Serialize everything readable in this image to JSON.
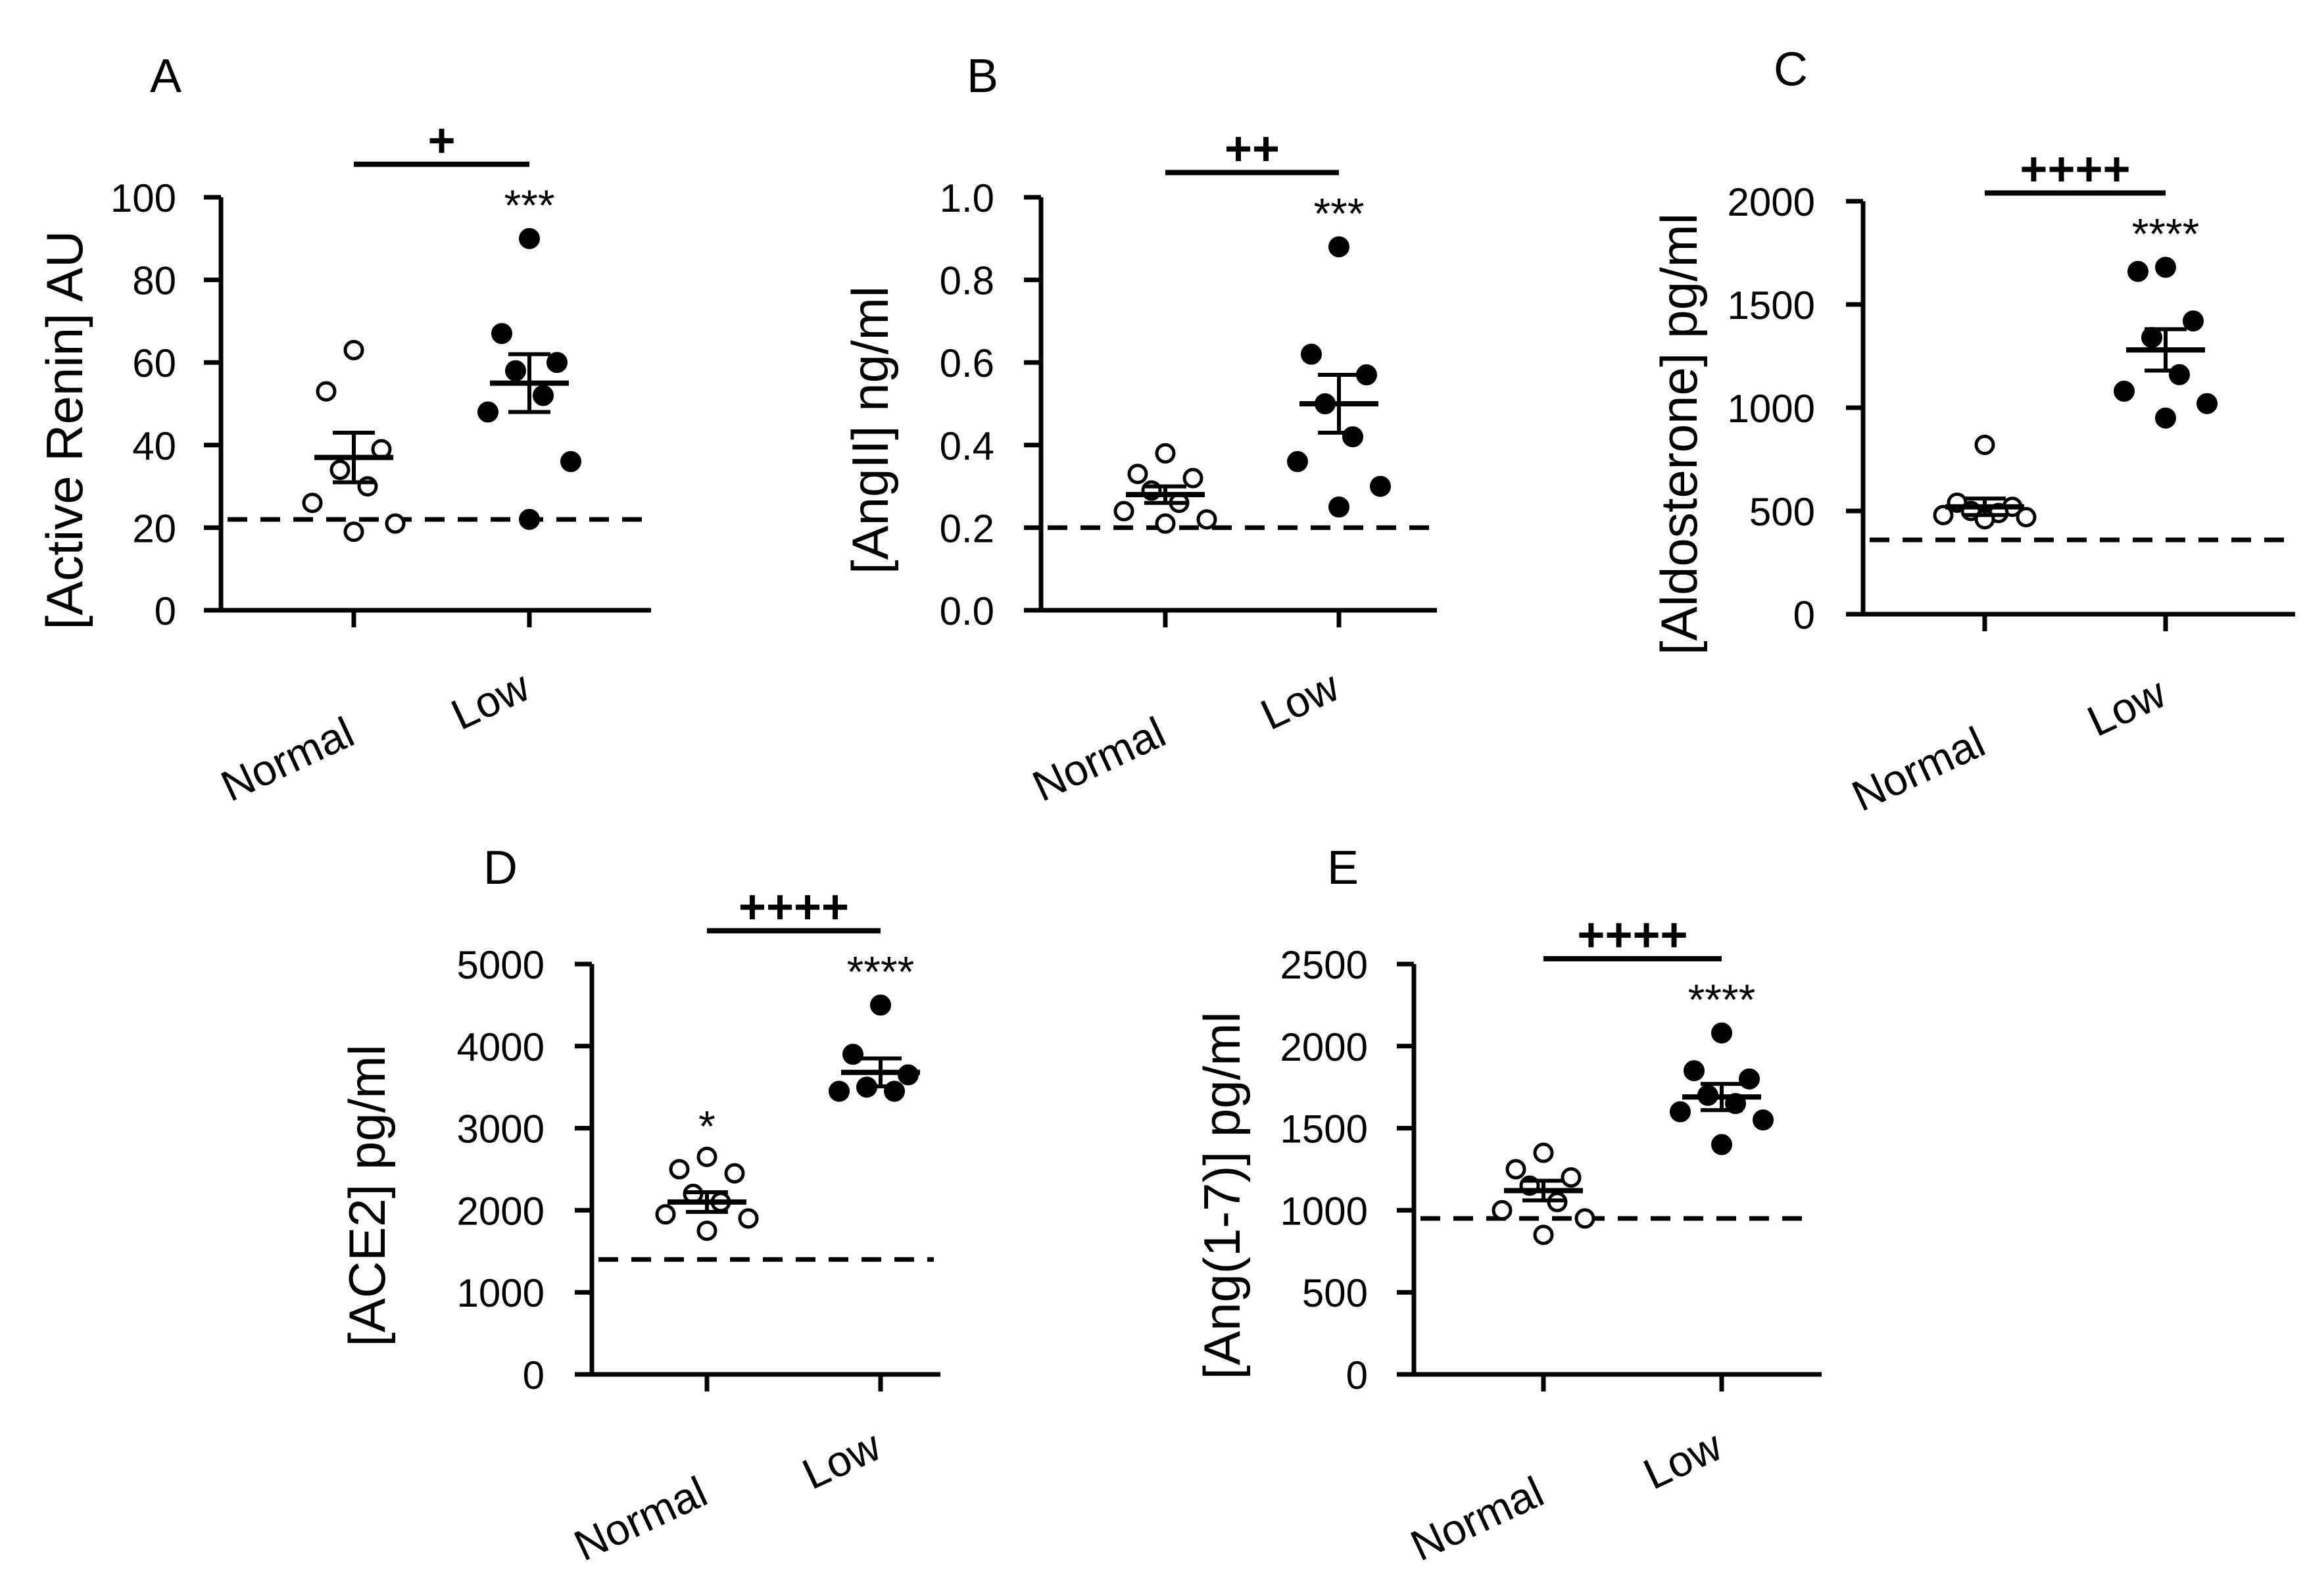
{
  "figure": {
    "background": "#ffffff",
    "ink": "#000000"
  },
  "chart_data": [
    {
      "panel_label": "A",
      "type": "scatter",
      "ylabel": "[Active Renin] AU",
      "categories": [
        "Normal",
        "Low"
      ],
      "ylim": [
        0,
        100
      ],
      "yticks": [
        0,
        20,
        40,
        60,
        80,
        100
      ],
      "baseline": 22,
      "series": [
        {
          "name": "Normal",
          "marker": "open",
          "values": [
            63,
            53,
            39,
            34,
            30,
            26,
            21,
            19
          ],
          "mean": 37,
          "sem": 6
        },
        {
          "name": "Low",
          "marker": "filled",
          "values": [
            90,
            67,
            60,
            58,
            52,
            48,
            36,
            22
          ],
          "mean": 55,
          "sem": 7
        }
      ],
      "significance_bar": "+",
      "significance_star": {
        "group": "Low",
        "text": "***"
      }
    },
    {
      "panel_label": "B",
      "type": "scatter",
      "ylabel": "[AngII] ng/ml",
      "categories": [
        "Normal",
        "Low"
      ],
      "ylim": [
        0,
        1.0
      ],
      "yticks": [
        0.0,
        0.2,
        0.4,
        0.6,
        0.8,
        1.0
      ],
      "baseline": 0.2,
      "series": [
        {
          "name": "Normal",
          "marker": "open",
          "values": [
            0.38,
            0.33,
            0.32,
            0.29,
            0.26,
            0.24,
            0.22,
            0.21
          ],
          "mean": 0.28,
          "sem": 0.02
        },
        {
          "name": "Low",
          "marker": "filled",
          "values": [
            0.88,
            0.62,
            0.57,
            0.5,
            0.42,
            0.36,
            0.3,
            0.25
          ],
          "mean": 0.5,
          "sem": 0.07
        }
      ],
      "significance_bar": "++",
      "significance_star": {
        "group": "Low",
        "text": "***"
      }
    },
    {
      "panel_label": "C",
      "type": "scatter",
      "ylabel": "[Aldosterone] pg/ml",
      "categories": [
        "Normal",
        "Low"
      ],
      "ylim": [
        0,
        2000
      ],
      "yticks": [
        0,
        500,
        1000,
        1500,
        2000
      ],
      "baseline": 360,
      "series": [
        {
          "name": "Normal",
          "marker": "open",
          "values": [
            820,
            540,
            520,
            500,
            490,
            480,
            470,
            460
          ],
          "mean": 520,
          "sem": 40
        },
        {
          "name": "Low",
          "marker": "filled",
          "values": [
            1680,
            1660,
            1420,
            1340,
            1160,
            1080,
            1020,
            950
          ],
          "mean": 1280,
          "sem": 100
        }
      ],
      "significance_bar": "++++",
      "significance_star": {
        "group": "Low",
        "text": "****"
      }
    },
    {
      "panel_label": "D",
      "type": "scatter",
      "ylabel": "[ACE2] pg/ml",
      "categories": [
        "Normal",
        "Low"
      ],
      "ylim": [
        0,
        5000
      ],
      "yticks": [
        0,
        1000,
        2000,
        3000,
        4000,
        5000
      ],
      "baseline": 1400,
      "series": [
        {
          "name": "Normal",
          "marker": "open",
          "values": [
            2650,
            2500,
            2450,
            2200,
            2100,
            1950,
            1900,
            1750
          ],
          "mean": 2100,
          "sem": 120
        },
        {
          "name": "Low",
          "marker": "filled",
          "values": [
            4500,
            3900,
            3650,
            3500,
            3450,
            3450
          ],
          "mean": 3680,
          "sem": 170
        }
      ],
      "significance_bar": "++++",
      "significance_star": {
        "group": "Low",
        "text": "****"
      },
      "normal_star": "*"
    },
    {
      "panel_label": "E",
      "type": "scatter",
      "ylabel": "[Ang(1-7)] pg/ml",
      "categories": [
        "Normal",
        "Low"
      ],
      "ylim": [
        0,
        2500
      ],
      "yticks": [
        0,
        500,
        1000,
        1500,
        2000,
        2500
      ],
      "baseline": 950,
      "series": [
        {
          "name": "Normal",
          "marker": "open",
          "values": [
            1350,
            1250,
            1200,
            1150,
            1050,
            1000,
            950,
            850
          ],
          "mean": 1120,
          "sem": 60
        },
        {
          "name": "Low",
          "marker": "filled",
          "values": [
            2080,
            1850,
            1800,
            1700,
            1650,
            1600,
            1550,
            1400
          ],
          "mean": 1690,
          "sem": 80
        }
      ],
      "significance_bar": "++++",
      "significance_star": {
        "group": "Low",
        "text": "****"
      }
    }
  ]
}
